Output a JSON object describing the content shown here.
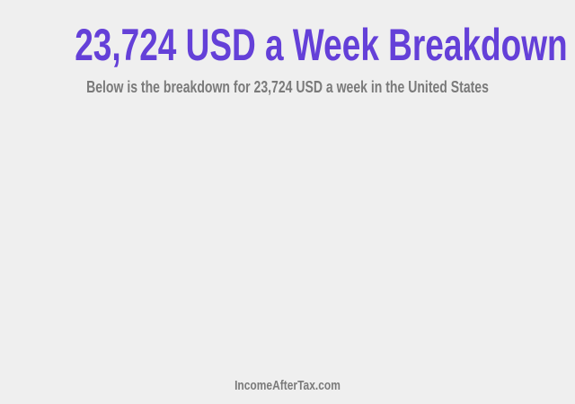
{
  "header": {
    "title": "23,724 USD a Week Breakdown",
    "subtitle": "Below is the breakdown for 23,724 USD a week in the United States"
  },
  "footer": {
    "site": "IncomeAfterTax.com"
  },
  "colors": {
    "title": "#6440d8",
    "text": "#7a7a7a",
    "background": "#efefef"
  }
}
